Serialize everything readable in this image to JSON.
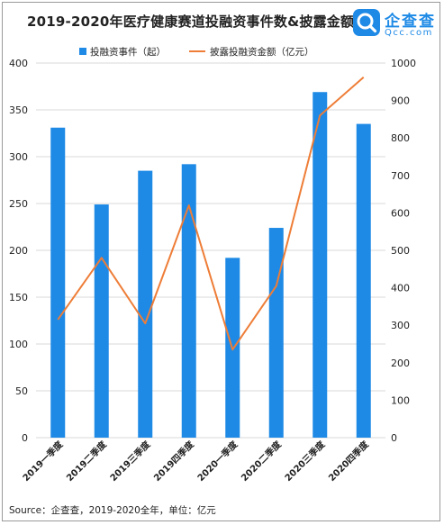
{
  "header": {
    "title": "2019-2020年医疗健康赛道投融资事件数&披露金额",
    "logo_name": "企查查",
    "logo_domain": "Qcc.com"
  },
  "footer": {
    "source": "Source：企查查，2019-2020全年，单位：亿元"
  },
  "colors": {
    "bar": "#1e8ae6",
    "line": "#ee7d37",
    "grid": "#d9d9d9",
    "text": "#222222"
  },
  "chart_data": {
    "type": "bar",
    "categories": [
      "2019一季度",
      "2019二季度",
      "2019三季度",
      "2019四季度",
      "2020一季度",
      "2020二季度",
      "2020三季度",
      "2020四季度"
    ],
    "series": [
      {
        "name": "投融资事件（起）",
        "type": "bar",
        "axis": "left",
        "values": [
          331,
          249,
          285,
          292,
          192,
          224,
          369,
          335
        ]
      },
      {
        "name": "披露投融资金额（亿元）",
        "type": "line",
        "axis": "right",
        "values": [
          315,
          480,
          305,
          620,
          235,
          405,
          860,
          962
        ]
      }
    ],
    "ylim_left": [
      0,
      400
    ],
    "yticks_left": [
      "0",
      "50",
      "100",
      "150",
      "200",
      "250",
      "300",
      "350",
      "400"
    ],
    "ylim_right": [
      0,
      1000
    ],
    "yticks_right": [
      "0",
      "100",
      "200",
      "300",
      "400",
      "500",
      "600",
      "700",
      "800",
      "900",
      "1000"
    ],
    "grid": true,
    "legend_position": "top"
  }
}
